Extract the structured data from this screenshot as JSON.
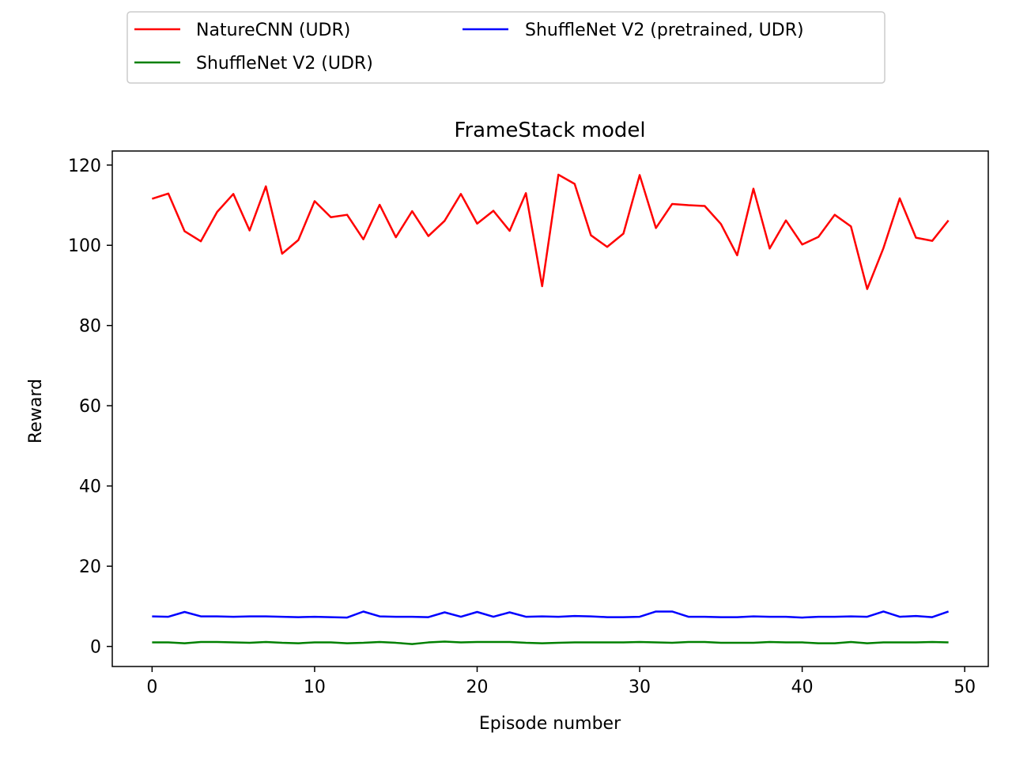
{
  "chart_data": {
    "type": "line",
    "title": "FrameStack model",
    "xlabel": "Episode number",
    "ylabel": "Reward",
    "xlim": [
      -2.45,
      51.45
    ],
    "ylim": [
      -5,
      123.5
    ],
    "xticks": [
      0,
      10,
      20,
      30,
      40,
      50
    ],
    "yticks": [
      0,
      20,
      40,
      60,
      80,
      100,
      120
    ],
    "grid": false,
    "legend_position": "above plot, two columns",
    "x": [
      0,
      1,
      2,
      3,
      4,
      5,
      6,
      7,
      8,
      9,
      10,
      11,
      12,
      13,
      14,
      15,
      16,
      17,
      18,
      19,
      20,
      21,
      22,
      23,
      24,
      25,
      26,
      27,
      28,
      29,
      30,
      31,
      32,
      33,
      34,
      35,
      36,
      37,
      38,
      39,
      40,
      41,
      42,
      43,
      44,
      45,
      46,
      47,
      48,
      49
    ],
    "series": [
      {
        "name": "NatureCNN (UDR)",
        "color": "#ff0000",
        "values": [
          111.6,
          112.9,
          103.5,
          101.0,
          108.3,
          112.8,
          103.7,
          114.7,
          97.9,
          101.3,
          111.0,
          107.0,
          107.6,
          101.5,
          110.1,
          102.0,
          108.5,
          102.3,
          106.1,
          112.8,
          105.4,
          108.6,
          103.6,
          113.0,
          89.8,
          117.6,
          115.3,
          102.5,
          99.6,
          102.9,
          117.5,
          104.3,
          110.3,
          110.0,
          109.8,
          105.3,
          97.5,
          114.1,
          99.2,
          106.2,
          100.2,
          102.1,
          107.6,
          104.7,
          89.1,
          99.3,
          111.7,
          101.9,
          101.1,
          106.2
        ]
      },
      {
        "name": "ShuffleNet V2 (UDR)",
        "color": "#008000",
        "values": [
          1.0,
          1.0,
          0.8,
          1.1,
          1.1,
          1.0,
          0.9,
          1.1,
          0.9,
          0.8,
          1.0,
          1.0,
          0.8,
          0.9,
          1.1,
          0.9,
          0.6,
          1.0,
          1.2,
          1.0,
          1.1,
          1.1,
          1.1,
          0.9,
          0.8,
          0.9,
          1.0,
          1.0,
          1.0,
          1.0,
          1.1,
          1.0,
          0.9,
          1.1,
          1.1,
          0.9,
          0.9,
          0.9,
          1.1,
          1.0,
          1.0,
          0.8,
          0.8,
          1.1,
          0.8,
          1.0,
          1.0,
          1.0,
          1.1,
          1.0
        ]
      },
      {
        "name": "ShuffleNet V2 (pretrained, UDR)",
        "color": "#0000ff",
        "values": [
          7.5,
          7.4,
          8.6,
          7.5,
          7.5,
          7.4,
          7.5,
          7.5,
          7.4,
          7.3,
          7.4,
          7.3,
          7.2,
          8.7,
          7.5,
          7.4,
          7.4,
          7.3,
          8.5,
          7.4,
          8.6,
          7.4,
          8.5,
          7.4,
          7.5,
          7.4,
          7.6,
          7.5,
          7.3,
          7.3,
          7.4,
          8.7,
          8.7,
          7.4,
          7.4,
          7.3,
          7.3,
          7.5,
          7.4,
          7.4,
          7.2,
          7.4,
          7.4,
          7.5,
          7.4,
          8.7,
          7.4,
          7.6,
          7.3,
          8.7
        ]
      }
    ]
  }
}
